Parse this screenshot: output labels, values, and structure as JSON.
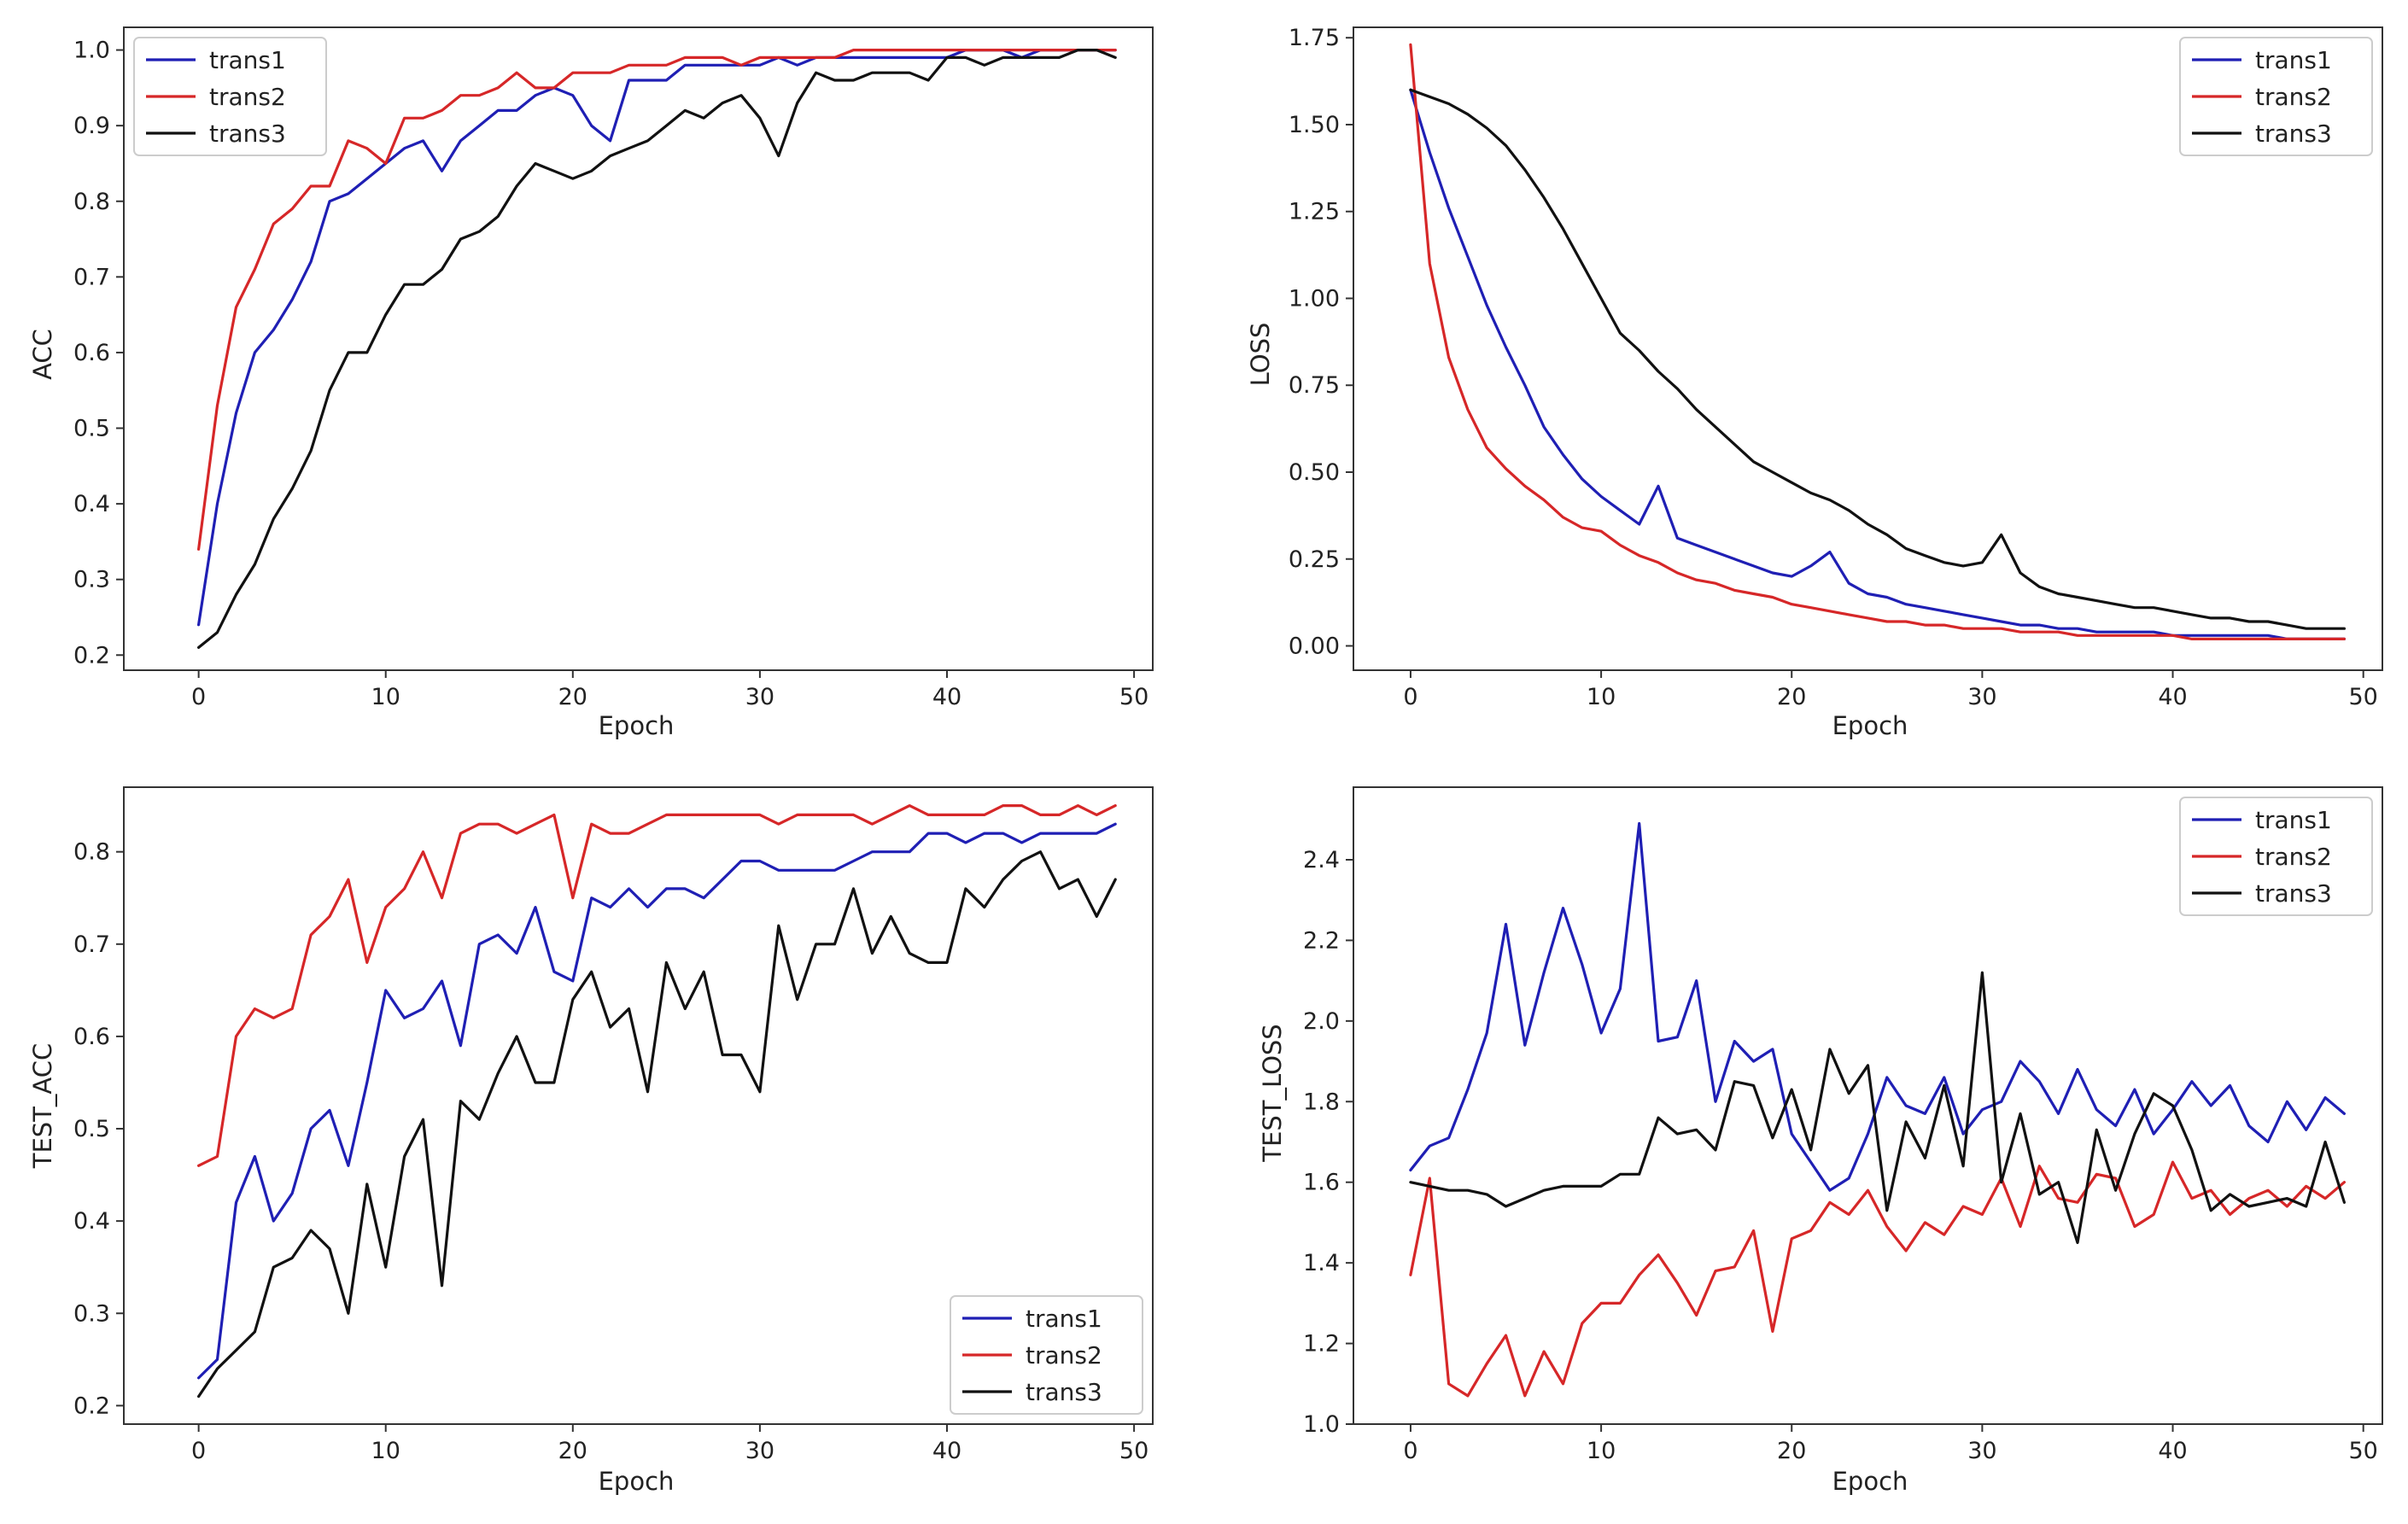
{
  "figure": {
    "background": "#ffffff",
    "axis_color": "#333333"
  },
  "chart_data": [
    {
      "id": "acc",
      "type": "line",
      "title": "",
      "xlabel": "Epoch",
      "ylabel": "ACC",
      "xlim": [
        -4,
        51
      ],
      "ylim": [
        0.18,
        1.03
      ],
      "xticks": [
        0,
        10,
        20,
        30,
        40,
        50
      ],
      "xtick_labels": [
        "0",
        "10",
        "20",
        "30",
        "40",
        "50"
      ],
      "yticks": [
        0.2,
        0.3,
        0.4,
        0.5,
        0.6,
        0.7,
        0.8,
        0.9,
        1.0
      ],
      "ytick_labels": [
        "0.2",
        "0.3",
        "0.4",
        "0.5",
        "0.6",
        "0.7",
        "0.8",
        "0.9",
        "1.0"
      ],
      "legend_position": "top-left",
      "series": [
        {
          "name": "trans1",
          "color": "#1f1fb4",
          "values": [
            0.24,
            0.4,
            0.52,
            0.6,
            0.63,
            0.67,
            0.72,
            0.8,
            0.81,
            0.83,
            0.85,
            0.87,
            0.88,
            0.84,
            0.88,
            0.9,
            0.92,
            0.92,
            0.94,
            0.95,
            0.94,
            0.9,
            0.88,
            0.96,
            0.96,
            0.96,
            0.98,
            0.98,
            0.98,
            0.98,
            0.98,
            0.99,
            0.98,
            0.99,
            0.99,
            0.99,
            0.99,
            0.99,
            0.99,
            0.99,
            0.99,
            1.0,
            1.0,
            1.0,
            0.99,
            1.0,
            1.0,
            1.0,
            1.0,
            1.0
          ]
        },
        {
          "name": "trans2",
          "color": "#d62728",
          "values": [
            0.34,
            0.53,
            0.66,
            0.71,
            0.77,
            0.79,
            0.82,
            0.82,
            0.88,
            0.87,
            0.85,
            0.91,
            0.91,
            0.92,
            0.94,
            0.94,
            0.95,
            0.97,
            0.95,
            0.95,
            0.97,
            0.97,
            0.97,
            0.98,
            0.98,
            0.98,
            0.99,
            0.99,
            0.99,
            0.98,
            0.99,
            0.99,
            0.99,
            0.99,
            0.99,
            1.0,
            1.0,
            1.0,
            1.0,
            1.0,
            1.0,
            1.0,
            1.0,
            1.0,
            1.0,
            1.0,
            1.0,
            1.0,
            1.0,
            1.0
          ]
        },
        {
          "name": "trans3",
          "color": "#111111",
          "values": [
            0.21,
            0.23,
            0.28,
            0.32,
            0.38,
            0.42,
            0.47,
            0.55,
            0.6,
            0.6,
            0.65,
            0.69,
            0.69,
            0.71,
            0.75,
            0.76,
            0.78,
            0.82,
            0.85,
            0.84,
            0.83,
            0.84,
            0.86,
            0.87,
            0.88,
            0.9,
            0.92,
            0.91,
            0.93,
            0.94,
            0.91,
            0.86,
            0.93,
            0.97,
            0.96,
            0.96,
            0.97,
            0.97,
            0.97,
            0.96,
            0.99,
            0.99,
            0.98,
            0.99,
            0.99,
            0.99,
            0.99,
            1.0,
            1.0,
            0.99
          ]
        }
      ]
    },
    {
      "id": "loss",
      "type": "line",
      "title": "",
      "xlabel": "Epoch",
      "ylabel": "LOSS",
      "xlim": [
        -3,
        51
      ],
      "ylim": [
        -0.07,
        1.78
      ],
      "xticks": [
        0,
        10,
        20,
        30,
        40,
        50
      ],
      "xtick_labels": [
        "0",
        "10",
        "20",
        "30",
        "40",
        "50"
      ],
      "yticks": [
        0.0,
        0.25,
        0.5,
        0.75,
        1.0,
        1.25,
        1.5,
        1.75
      ],
      "ytick_labels": [
        "0.00",
        "0.25",
        "0.50",
        "0.75",
        "1.00",
        "1.25",
        "1.50",
        "1.75"
      ],
      "legend_position": "top-right",
      "series": [
        {
          "name": "trans1",
          "color": "#1f1fb4",
          "values": [
            1.6,
            1.42,
            1.26,
            1.12,
            0.98,
            0.86,
            0.75,
            0.63,
            0.55,
            0.48,
            0.43,
            0.39,
            0.35,
            0.46,
            0.31,
            0.29,
            0.27,
            0.25,
            0.23,
            0.21,
            0.2,
            0.23,
            0.27,
            0.18,
            0.15,
            0.14,
            0.12,
            0.11,
            0.1,
            0.09,
            0.08,
            0.07,
            0.06,
            0.06,
            0.05,
            0.05,
            0.04,
            0.04,
            0.04,
            0.04,
            0.03,
            0.03,
            0.03,
            0.03,
            0.03,
            0.03,
            0.02,
            0.02,
            0.02,
            0.02
          ]
        },
        {
          "name": "trans2",
          "color": "#d62728",
          "values": [
            1.73,
            1.1,
            0.83,
            0.68,
            0.57,
            0.51,
            0.46,
            0.42,
            0.37,
            0.34,
            0.33,
            0.29,
            0.26,
            0.24,
            0.21,
            0.19,
            0.18,
            0.16,
            0.15,
            0.14,
            0.12,
            0.11,
            0.1,
            0.09,
            0.08,
            0.07,
            0.07,
            0.06,
            0.06,
            0.05,
            0.05,
            0.05,
            0.04,
            0.04,
            0.04,
            0.03,
            0.03,
            0.03,
            0.03,
            0.03,
            0.03,
            0.02,
            0.02,
            0.02,
            0.02,
            0.02,
            0.02,
            0.02,
            0.02,
            0.02
          ]
        },
        {
          "name": "trans3",
          "color": "#111111",
          "values": [
            1.6,
            1.58,
            1.56,
            1.53,
            1.49,
            1.44,
            1.37,
            1.29,
            1.2,
            1.1,
            1.0,
            0.9,
            0.85,
            0.79,
            0.74,
            0.68,
            0.63,
            0.58,
            0.53,
            0.5,
            0.47,
            0.44,
            0.42,
            0.39,
            0.35,
            0.32,
            0.28,
            0.26,
            0.24,
            0.23,
            0.24,
            0.32,
            0.21,
            0.17,
            0.15,
            0.14,
            0.13,
            0.12,
            0.11,
            0.11,
            0.1,
            0.09,
            0.08,
            0.08,
            0.07,
            0.07,
            0.06,
            0.05,
            0.05,
            0.05
          ]
        }
      ]
    },
    {
      "id": "test_acc",
      "type": "line",
      "title": "",
      "xlabel": "Epoch",
      "ylabel": "TEST_ACC",
      "xlim": [
        -4,
        51
      ],
      "ylim": [
        0.18,
        0.87
      ],
      "xticks": [
        0,
        10,
        20,
        30,
        40,
        50
      ],
      "xtick_labels": [
        "0",
        "10",
        "20",
        "30",
        "40",
        "50"
      ],
      "yticks": [
        0.2,
        0.3,
        0.4,
        0.5,
        0.6,
        0.7,
        0.8
      ],
      "ytick_labels": [
        "0.2",
        "0.3",
        "0.4",
        "0.5",
        "0.6",
        "0.7",
        "0.8"
      ],
      "legend_position": "bottom-right",
      "series": [
        {
          "name": "trans1",
          "color": "#1f1fb4",
          "values": [
            0.23,
            0.25,
            0.42,
            0.47,
            0.4,
            0.43,
            0.5,
            0.52,
            0.46,
            0.55,
            0.65,
            0.62,
            0.63,
            0.66,
            0.59,
            0.7,
            0.71,
            0.69,
            0.74,
            0.67,
            0.66,
            0.75,
            0.74,
            0.76,
            0.74,
            0.76,
            0.76,
            0.75,
            0.77,
            0.79,
            0.79,
            0.78,
            0.78,
            0.78,
            0.78,
            0.79,
            0.8,
            0.8,
            0.8,
            0.82,
            0.82,
            0.81,
            0.82,
            0.82,
            0.81,
            0.82,
            0.82,
            0.82,
            0.82,
            0.83
          ]
        },
        {
          "name": "trans2",
          "color": "#d62728",
          "values": [
            0.46,
            0.47,
            0.6,
            0.63,
            0.62,
            0.63,
            0.71,
            0.73,
            0.77,
            0.68,
            0.74,
            0.76,
            0.8,
            0.75,
            0.82,
            0.83,
            0.83,
            0.82,
            0.83,
            0.84,
            0.75,
            0.83,
            0.82,
            0.82,
            0.83,
            0.84,
            0.84,
            0.84,
            0.84,
            0.84,
            0.84,
            0.83,
            0.84,
            0.84,
            0.84,
            0.84,
            0.83,
            0.84,
            0.85,
            0.84,
            0.84,
            0.84,
            0.84,
            0.85,
            0.85,
            0.84,
            0.84,
            0.85,
            0.84,
            0.85
          ]
        },
        {
          "name": "trans3",
          "color": "#111111",
          "values": [
            0.21,
            0.24,
            0.26,
            0.28,
            0.35,
            0.36,
            0.39,
            0.37,
            0.3,
            0.44,
            0.35,
            0.47,
            0.51,
            0.33,
            0.53,
            0.51,
            0.56,
            0.6,
            0.55,
            0.55,
            0.64,
            0.67,
            0.61,
            0.63,
            0.54,
            0.68,
            0.63,
            0.67,
            0.58,
            0.58,
            0.54,
            0.72,
            0.64,
            0.7,
            0.7,
            0.76,
            0.69,
            0.73,
            0.69,
            0.68,
            0.68,
            0.76,
            0.74,
            0.77,
            0.79,
            0.8,
            0.76,
            0.77,
            0.73,
            0.77
          ]
        }
      ]
    },
    {
      "id": "test_loss",
      "type": "line",
      "title": "",
      "xlabel": "Epoch",
      "ylabel": "TEST_LOSS",
      "xlim": [
        -3,
        51
      ],
      "ylim": [
        1.0,
        2.58
      ],
      "xticks": [
        0,
        10,
        20,
        30,
        40,
        50
      ],
      "xtick_labels": [
        "0",
        "10",
        "20",
        "30",
        "40",
        "50"
      ],
      "yticks": [
        1.0,
        1.2,
        1.4,
        1.6,
        1.8,
        2.0,
        2.2,
        2.4
      ],
      "ytick_labels": [
        "1.0",
        "1.2",
        "1.4",
        "1.6",
        "1.8",
        "2.0",
        "2.2",
        "2.4"
      ],
      "legend_position": "top-right",
      "series": [
        {
          "name": "trans1",
          "color": "#1f1fb4",
          "values": [
            1.63,
            1.69,
            1.71,
            1.83,
            1.97,
            2.24,
            1.94,
            2.12,
            2.28,
            2.14,
            1.97,
            2.08,
            2.49,
            1.95,
            1.96,
            2.1,
            1.8,
            1.95,
            1.9,
            1.93,
            1.72,
            1.65,
            1.58,
            1.61,
            1.72,
            1.86,
            1.79,
            1.77,
            1.86,
            1.72,
            1.78,
            1.8,
            1.9,
            1.85,
            1.77,
            1.88,
            1.78,
            1.74,
            1.83,
            1.72,
            1.78,
            1.85,
            1.79,
            1.84,
            1.74,
            1.7,
            1.8,
            1.73,
            1.81,
            1.77
          ]
        },
        {
          "name": "trans2",
          "color": "#d62728",
          "values": [
            1.37,
            1.61,
            1.1,
            1.07,
            1.15,
            1.22,
            1.07,
            1.18,
            1.1,
            1.25,
            1.3,
            1.3,
            1.37,
            1.42,
            1.35,
            1.27,
            1.38,
            1.39,
            1.48,
            1.23,
            1.46,
            1.48,
            1.55,
            1.52,
            1.58,
            1.49,
            1.43,
            1.5,
            1.47,
            1.54,
            1.52,
            1.61,
            1.49,
            1.64,
            1.56,
            1.55,
            1.62,
            1.61,
            1.49,
            1.52,
            1.65,
            1.56,
            1.58,
            1.52,
            1.56,
            1.58,
            1.54,
            1.59,
            1.56,
            1.6
          ]
        },
        {
          "name": "trans3",
          "color": "#111111",
          "values": [
            1.6,
            1.59,
            1.58,
            1.58,
            1.57,
            1.54,
            1.56,
            1.58,
            1.59,
            1.59,
            1.59,
            1.62,
            1.62,
            1.76,
            1.72,
            1.73,
            1.68,
            1.85,
            1.84,
            1.71,
            1.83,
            1.68,
            1.93,
            1.82,
            1.89,
            1.53,
            1.75,
            1.66,
            1.84,
            1.64,
            2.12,
            1.6,
            1.77,
            1.57,
            1.6,
            1.45,
            1.73,
            1.58,
            1.72,
            1.82,
            1.79,
            1.68,
            1.53,
            1.57,
            1.54,
            1.55,
            1.56,
            1.54,
            1.7,
            1.55
          ]
        }
      ]
    }
  ]
}
